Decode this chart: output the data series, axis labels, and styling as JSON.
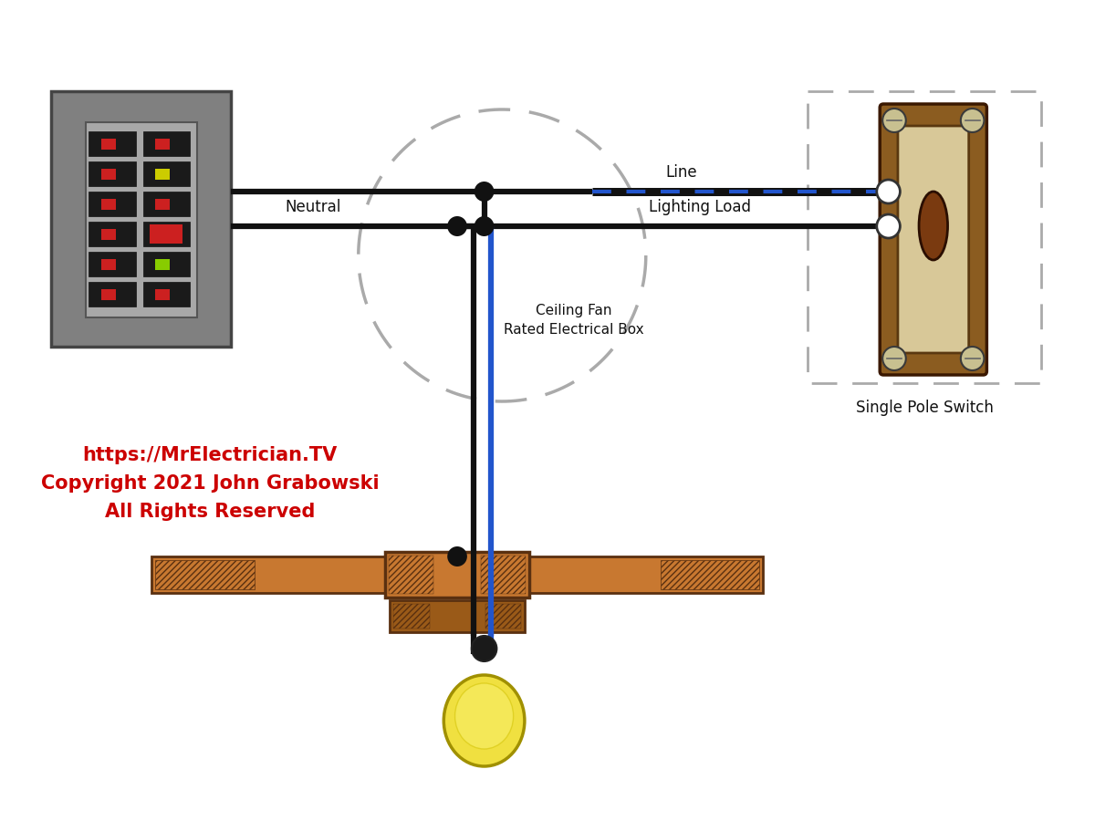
{
  "bg_color": "#ffffff",
  "wire_black": "#111111",
  "wire_blue": "#2255cc",
  "panel_outer_color": "#808080",
  "panel_inner_color": "#a8a8a8",
  "breaker_color": "#1a1a1a",
  "breaker_red": "#cc2020",
  "breaker_yellow": "#cccc00",
  "switch_body_color": "#d8c898",
  "switch_frame_color": "#8b5c20",
  "switch_toggle_color": "#7a3a10",
  "switch_screw_color": "#c8c090",
  "fan_blade_color": "#c87830",
  "fan_blade_edge": "#5a3010",
  "fan_bracket_color": "#9a5a18",
  "bulb_color": "#f0e040",
  "bulb_edge": "#a09000",
  "bulb_base_color": "#333333",
  "junction_color": "#111111",
  "circle_dash_color": "#aaaaaa",
  "switch_box_dash_color": "#aaaaaa",
  "label_color": "#111111",
  "copyright_color": "#cc0000",
  "copyright_text": "https://MrElectrician.TV\nCopyright 2021 John Grabowski\nAll Rights Reserved",
  "label_neutral": "Neutral",
  "label_line": "Line",
  "label_lighting": "Lighting Load",
  "label_ceiling_fan_1": "Ceiling Fan",
  "label_ceiling_fan_2": "Rated Electrical Box",
  "label_switch": "Single Pole Switch",
  "figw": 12.0,
  "figh": 9.0
}
